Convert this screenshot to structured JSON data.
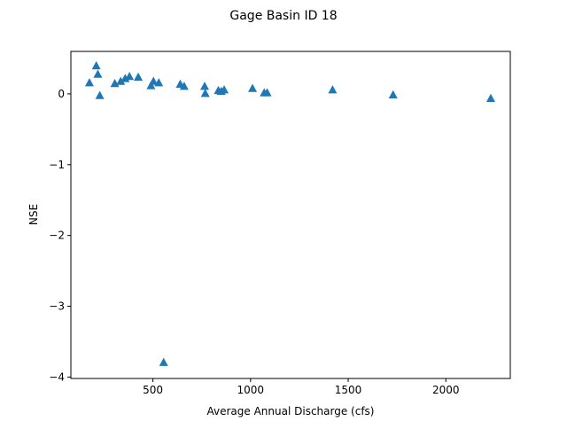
{
  "chart_data": {
    "type": "scatter",
    "title": "Gage Basin ID 18",
    "xlabel": "Average Annual Discharge (cfs)",
    "ylabel": "NSE",
    "xlim": [
      80,
      2330
    ],
    "ylim": [
      -4.02,
      0.6
    ],
    "x_ticks": [
      500,
      1000,
      1500,
      2000
    ],
    "x_tick_labels": [
      "500",
      "1000",
      "1500",
      "2000"
    ],
    "y_ticks": [
      0,
      -1,
      -2,
      -3,
      -4
    ],
    "y_tick_labels": [
      "0",
      "−1",
      "−2",
      "−3",
      "−4"
    ],
    "grid": false,
    "marker": "triangle-up",
    "marker_color": "#1f77b4",
    "points": [
      {
        "x": 175,
        "y": 0.16
      },
      {
        "x": 210,
        "y": 0.4
      },
      {
        "x": 218,
        "y": 0.28
      },
      {
        "x": 228,
        "y": -0.02
      },
      {
        "x": 305,
        "y": 0.15
      },
      {
        "x": 335,
        "y": 0.18
      },
      {
        "x": 358,
        "y": 0.22
      },
      {
        "x": 380,
        "y": 0.25
      },
      {
        "x": 425,
        "y": 0.24
      },
      {
        "x": 490,
        "y": 0.12
      },
      {
        "x": 503,
        "y": 0.18
      },
      {
        "x": 530,
        "y": 0.16
      },
      {
        "x": 555,
        "y": -3.79
      },
      {
        "x": 640,
        "y": 0.14
      },
      {
        "x": 660,
        "y": 0.11
      },
      {
        "x": 765,
        "y": 0.11
      },
      {
        "x": 768,
        "y": 0.01
      },
      {
        "x": 835,
        "y": 0.05
      },
      {
        "x": 850,
        "y": 0.04
      },
      {
        "x": 865,
        "y": 0.06
      },
      {
        "x": 1010,
        "y": 0.08
      },
      {
        "x": 1070,
        "y": 0.02
      },
      {
        "x": 1085,
        "y": 0.02
      },
      {
        "x": 1420,
        "y": 0.06
      },
      {
        "x": 1730,
        "y": -0.01
      },
      {
        "x": 2230,
        "y": -0.06
      }
    ]
  }
}
